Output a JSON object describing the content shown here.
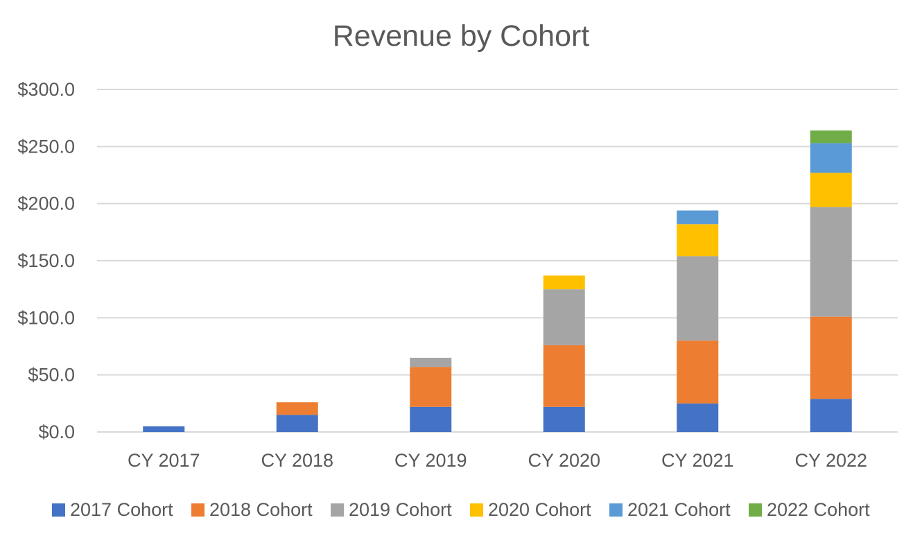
{
  "chart_data": {
    "type": "bar",
    "stacked": true,
    "title": "Revenue by Cohort",
    "xlabel": "",
    "ylabel": "",
    "categories": [
      "CY 2017",
      "CY 2018",
      "CY 2019",
      "CY 2020",
      "CY 2021",
      "CY 2022"
    ],
    "ylim": [
      0,
      300
    ],
    "yticks": [
      0,
      50,
      100,
      150,
      200,
      250,
      300
    ],
    "ytick_labels": [
      "$0.0",
      "$50.0",
      "$100.0",
      "$150.0",
      "$200.0",
      "$250.0",
      "$300.0"
    ],
    "grid": true,
    "legend_position": "bottom",
    "series": [
      {
        "name": "2017 Cohort",
        "color": "#4472C4",
        "values": [
          5,
          15,
          22,
          22,
          25,
          29
        ]
      },
      {
        "name": "2018 Cohort",
        "color": "#ED7D31",
        "values": [
          0,
          11,
          35,
          54,
          55,
          72
        ]
      },
      {
        "name": "2019 Cohort",
        "color": "#A5A5A5",
        "values": [
          0,
          0,
          8,
          49,
          74,
          96
        ]
      },
      {
        "name": "2020 Cohort",
        "color": "#FFC000",
        "values": [
          0,
          0,
          0,
          12,
          28,
          30
        ]
      },
      {
        "name": "2021 Cohort",
        "color": "#5B9BD5",
        "values": [
          0,
          0,
          0,
          0,
          12,
          26
        ]
      },
      {
        "name": "2022 Cohort",
        "color": "#70AD47",
        "values": [
          0,
          0,
          0,
          0,
          0,
          11
        ]
      }
    ]
  }
}
